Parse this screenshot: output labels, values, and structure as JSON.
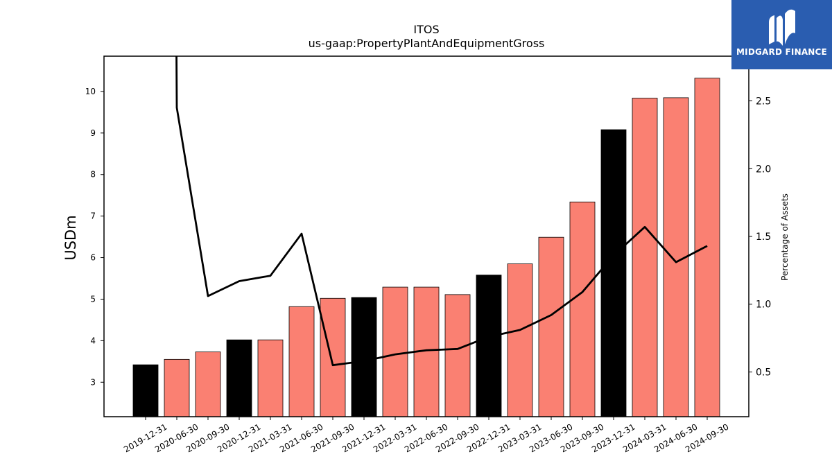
{
  "chart_data": {
    "type": "bar",
    "title": "ITOS",
    "subtitle": "us-gaap:PropertyPlantAndEquipmentGross",
    "ylabel": "USDm",
    "y2label": "Percentage of Assets",
    "categories": [
      "2019-12-31",
      "2020-06-30",
      "2020-09-30",
      "2020-12-31",
      "2021-03-31",
      "2021-06-30",
      "2021-09-30",
      "2021-12-31",
      "2022-03-31",
      "2022-06-30",
      "2022-09-30",
      "2022-12-31",
      "2023-03-31",
      "2023-06-30",
      "2023-09-30",
      "2023-12-31",
      "2024-03-31",
      "2024-06-30",
      "2024-09-30"
    ],
    "series": [
      {
        "values": [
          3.42,
          3.55,
          3.73,
          4.02,
          4.02,
          4.82,
          5.02,
          5.04,
          5.29,
          5.29,
          5.11,
          5.58,
          5.85,
          6.49,
          7.34,
          9.08,
          9.84,
          9.85,
          10.32
        ],
        "axis": "left",
        "colors": [
          "#000000",
          "#fa8072",
          "#fa8072",
          "#000000",
          "#fa8072",
          "#fa8072",
          "#fa8072",
          "#000000",
          "#fa8072",
          "#fa8072",
          "#fa8072",
          "#000000",
          "#fa8072",
          "#fa8072",
          "#fa8072",
          "#000000",
          "#fa8072",
          "#fa8072",
          "#fa8072"
        ]
      },
      {
        "type": "line",
        "axis": "right",
        "color": "#000000",
        "values": [
          4.1,
          2.45,
          1.06,
          1.17,
          1.21,
          1.52,
          0.55,
          0.58,
          0.63,
          0.66,
          0.67,
          0.76,
          0.81,
          0.92,
          1.09,
          1.36,
          1.57,
          1.31,
          1.43
        ]
      }
    ],
    "ylim": [
      2.17,
      10.85
    ],
    "y2lim": [
      0.17,
      2.83
    ],
    "yticks": [
      3,
      4,
      5,
      6,
      7,
      8,
      9,
      10
    ],
    "y2ticks": [
      0.5,
      1.0,
      1.5,
      2.0,
      2.5
    ],
    "y2tick_labels": [
      "0.5",
      "1.0",
      "1.5",
      "2.0",
      "2.5"
    ],
    "grid": false
  },
  "logo": {
    "text": "MIDGARD FINANCE",
    "background": "#2a5db0"
  }
}
